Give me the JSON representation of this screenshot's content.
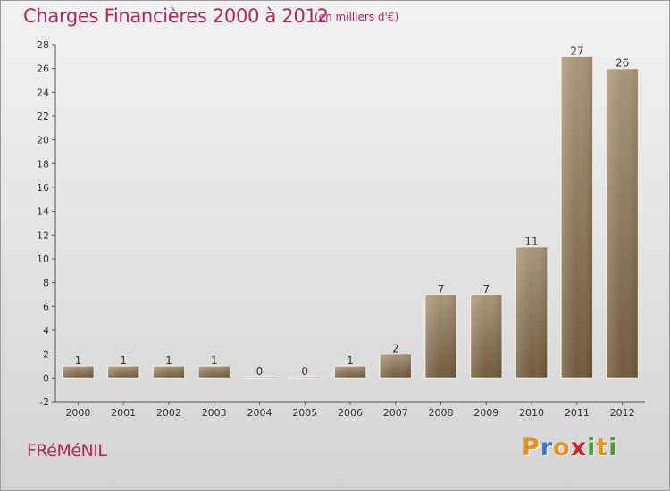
{
  "header": {
    "title": "Charges Financières 2000 à 2012",
    "subtitle": "(en milliers d'€)"
  },
  "footer": {
    "commune": "FRéMéNIL",
    "logo_letters": [
      "P",
      "r",
      "o",
      "x",
      "i",
      "t",
      "i"
    ],
    "logo_colors": [
      "#e2931f",
      "#3d7cc4",
      "#e2931f",
      "#c9262b",
      "#4e9b35",
      "#e2931f",
      "#4e9b35"
    ]
  },
  "chart_data": {
    "type": "bar",
    "title": "Charges Financières 2000 à 2012",
    "subtitle": "(en milliers d'€)",
    "xlabel": "",
    "ylabel": "",
    "categories": [
      "2000",
      "2001",
      "2002",
      "2003",
      "2004",
      "2005",
      "2006",
      "2007",
      "2008",
      "2009",
      "2010",
      "2011",
      "2012"
    ],
    "values": [
      1,
      1,
      1,
      1,
      0,
      0,
      1,
      2,
      7,
      7,
      11,
      27,
      26
    ],
    "data_labels": [
      "1",
      "1",
      "1",
      "1",
      "0",
      "0",
      "1",
      "2",
      "7",
      "7",
      "11",
      "27",
      "26"
    ],
    "ylim": [
      -2,
      28
    ],
    "yticks": [
      -2,
      0,
      2,
      4,
      6,
      8,
      10,
      12,
      14,
      16,
      18,
      20,
      22,
      24,
      26,
      28
    ],
    "grid": false,
    "legend": "none",
    "bar_color": "#8c7656"
  }
}
